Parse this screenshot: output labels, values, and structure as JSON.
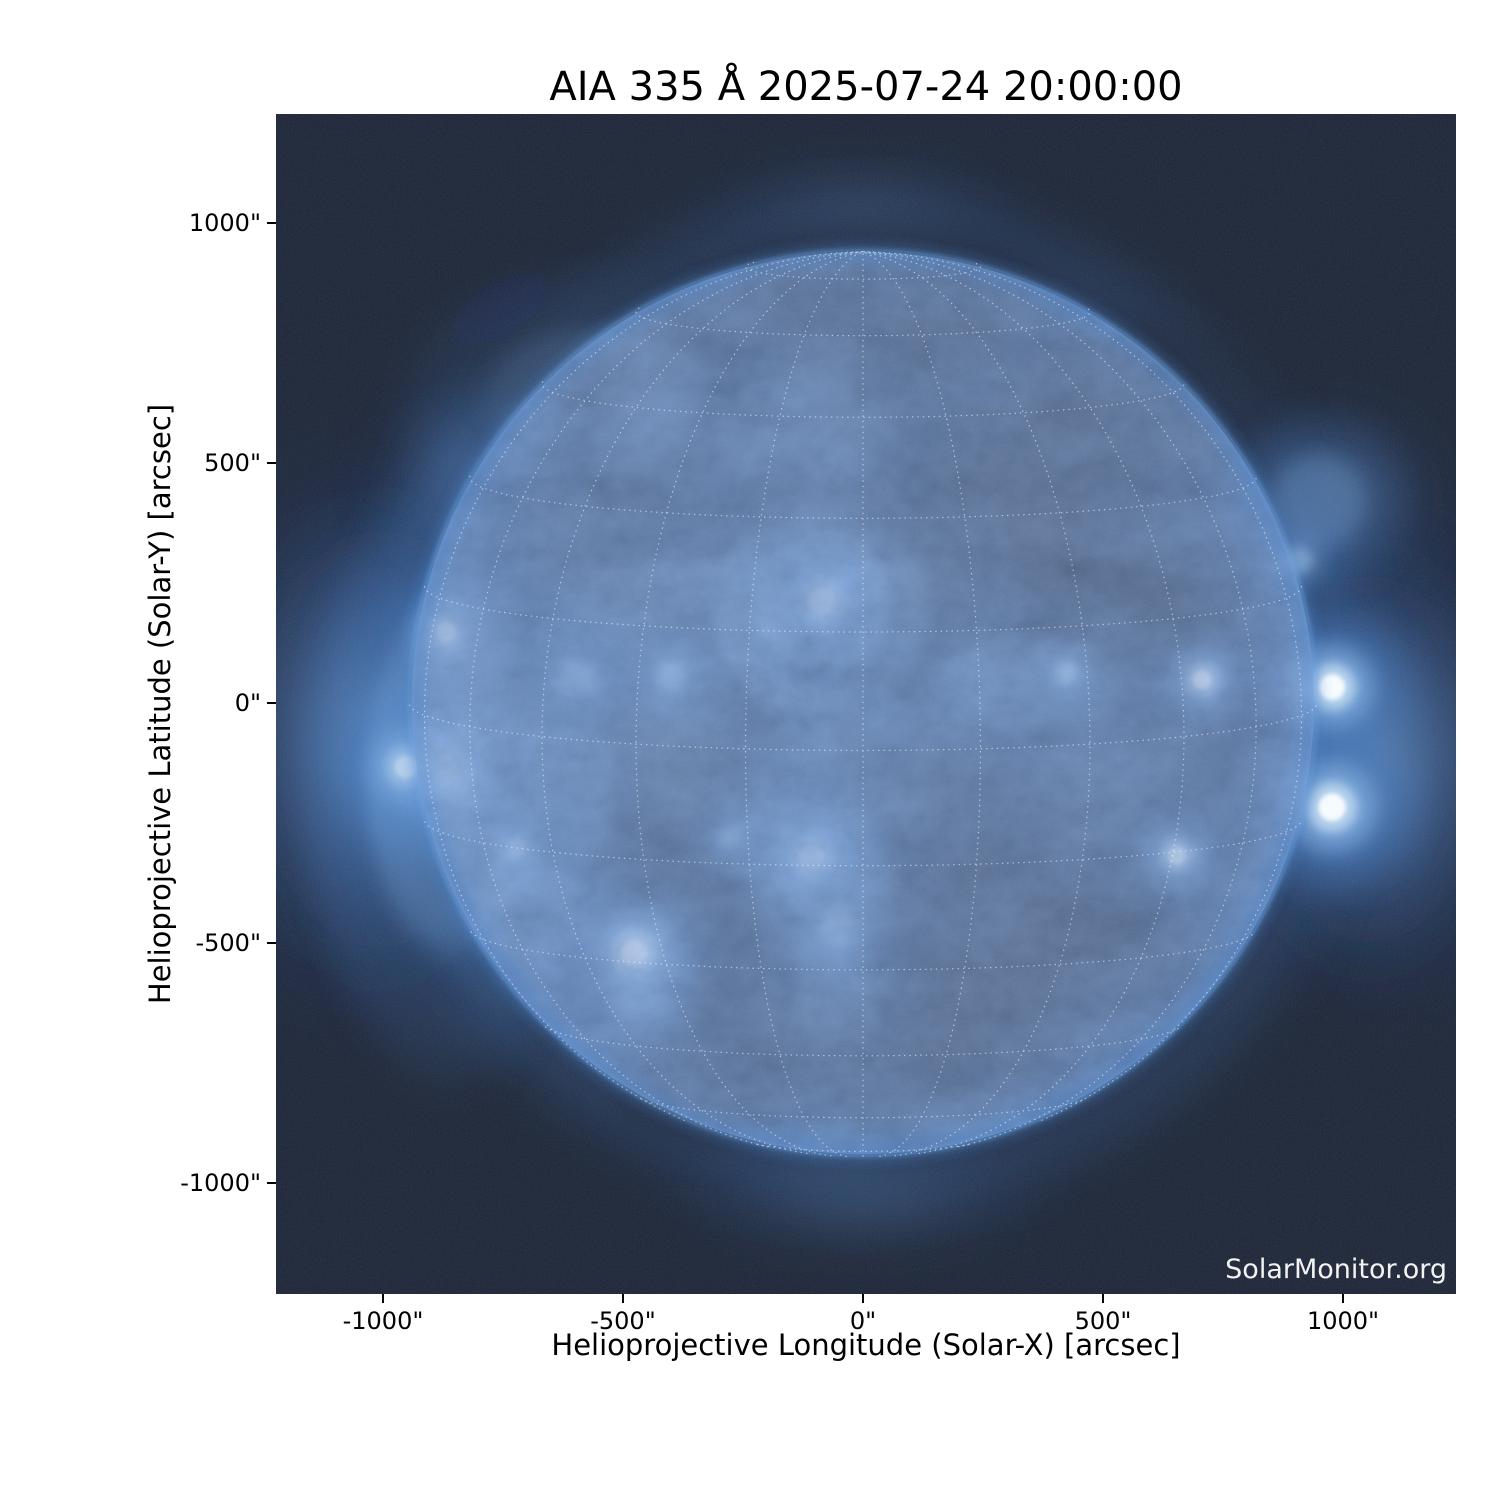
{
  "title": "AIA 335 Å 2025-07-24 20:00:00",
  "watermark": "SolarMonitor.org",
  "axes": {
    "x": {
      "label": "Helioprojective Longitude (Solar-X) [arcsec]",
      "ticks": [
        {
          "v": -1000,
          "label": "-1000\""
        },
        {
          "v": -500,
          "label": "-500\""
        },
        {
          "v": 0,
          "label": "0\""
        },
        {
          "v": 500,
          "label": "500\""
        },
        {
          "v": 1000,
          "label": "1000\""
        }
      ]
    },
    "y": {
      "label": "Helioprojective Latitude (Solar-Y) [arcsec]",
      "ticks": [
        {
          "v": 1000,
          "label": "1000\""
        },
        {
          "v": 500,
          "label": "500\""
        },
        {
          "v": 0,
          "label": "0\""
        },
        {
          "v": -500,
          "label": "-500\""
        },
        {
          "v": -1000,
          "label": "-1000\""
        }
      ]
    }
  },
  "chart_data": {
    "type": "heatmap",
    "title": "AIA 335 Å 2025-07-24 20:00:00",
    "instrument": "AIA",
    "wavelength": "335 Å",
    "observed": "2025-07-24 20:00:00",
    "credit": "SolarMonitor.org",
    "xlabel": "Helioprojective Longitude (Solar-X) [arcsec]",
    "ylabel": "Helioprojective Latitude (Solar-Y) [arcsec]",
    "xlim": [
      -1222,
      1236
    ],
    "ylim": [
      -1231,
      1227
    ],
    "x_ticks_arcsec": [
      -1000,
      -500,
      0,
      500,
      1000
    ],
    "y_ticks_arcsec": [
      -1000,
      -500,
      0,
      500,
      1000
    ],
    "grid": {
      "spacing_deg": 15,
      "style": "dotted",
      "color": "#ffffff"
    },
    "solar_disk": {
      "center_arcsec": [
        0,
        0
      ],
      "radius_arcsec": 946,
      "b0_deg": 6
    },
    "palette": {
      "background": "#000000",
      "corona_glow": "#3b74c0",
      "limb_rim": "#356fc0",
      "bright_core": "#f5fafe",
      "disk_dark": "#04070f"
    },
    "bright_features": [
      {
        "name": "AR-disk-center-north",
        "x": -85,
        "y": 212,
        "r": 82,
        "i": 1.0
      },
      {
        "name": "AR-center-halo",
        "x": -85,
        "y": 190,
        "r": 185,
        "i": 0.33,
        "sx": 1.15
      },
      {
        "name": "plage-NE-of-center",
        "x": -383,
        "y": 183,
        "r": 150,
        "i": 0.4,
        "sx": 1.5,
        "sy": 0.75
      },
      {
        "name": "plage-knot-E",
        "x": -598,
        "y": 54,
        "r": 55,
        "i": 0.65
      },
      {
        "name": "plage-knot-C",
        "x": -400,
        "y": 58,
        "r": 45,
        "i": 0.6
      },
      {
        "name": "AR-east-limb-1",
        "x": -877,
        "y": -140,
        "r": 95,
        "i": 1.0
      },
      {
        "name": "AR-east-limb-2",
        "x": -952,
        "y": -133,
        "r": 70,
        "i": 0.95
      },
      {
        "name": "AR-east-limb-3",
        "x": -869,
        "y": 148,
        "r": 60,
        "i": 0.9
      },
      {
        "name": "AR-east-limb-4",
        "x": -721,
        "y": -302,
        "r": 52,
        "i": 0.85
      },
      {
        "name": "east-limb-halo",
        "x": -860,
        "y": -160,
        "r": 200,
        "i": 0.4,
        "sx": 0.8,
        "sy": 1.6
      },
      {
        "name": "AR-southwest",
        "x": -477,
        "y": -521,
        "r": 80,
        "i": 1.0
      },
      {
        "name": "AR-southwest-loops",
        "x": -467,
        "y": -619,
        "r": 60,
        "i": 0.5
      },
      {
        "name": "knot-south",
        "x": -275,
        "y": -279,
        "r": 36,
        "i": 0.7
      },
      {
        "name": "AR-south-center",
        "x": -106,
        "y": -321,
        "r": 75,
        "i": 1.0
      },
      {
        "name": "AR-south-center-ext",
        "x": -54,
        "y": -462,
        "r": 55,
        "i": 0.65,
        "sy": 1.3
      },
      {
        "name": "AR-south-halo",
        "x": -95,
        "y": -360,
        "r": 140,
        "i": 0.36,
        "sy": 1.2
      },
      {
        "name": "plage-west-fan",
        "x": 335,
        "y": 42,
        "r": 115,
        "i": 0.45,
        "sx": 1.5,
        "sy": 0.8
      },
      {
        "name": "knot-west",
        "x": 425,
        "y": 65,
        "r": 34,
        "i": 0.75
      },
      {
        "name": "AR-west-1",
        "x": 706,
        "y": 48,
        "r": 55,
        "i": 0.85
      },
      {
        "name": "AR-west-2",
        "x": 654,
        "y": -317,
        "r": 55,
        "i": 0.8
      },
      {
        "name": "AR-west-limb-N",
        "x": 977,
        "y": 33,
        "r": 80,
        "i": 1.0
      },
      {
        "name": "AR-west-limb-S",
        "x": 977,
        "y": -217,
        "r": 85,
        "i": 1.0
      },
      {
        "name": "west-limb-knot-N",
        "x": 908,
        "y": 298,
        "r": 45,
        "i": 0.55
      },
      {
        "name": "west-limb-halo-N",
        "x": 950,
        "y": 420,
        "r": 90,
        "i": 0.4
      },
      {
        "name": "wisps-north-1",
        "x": -550,
        "y": 630,
        "r": 140,
        "i": 0.26,
        "sx": 1.5
      },
      {
        "name": "wisps-north-2",
        "x": -130,
        "y": 560,
        "r": 115,
        "i": 0.28,
        "sx": 1.4
      },
      {
        "name": "wisps-east-inner",
        "x": -612,
        "y": -120,
        "r": 115,
        "i": 0.45,
        "sx": 0.75,
        "sy": 1.7
      },
      {
        "name": "wisps-central",
        "x": -300,
        "y": -100,
        "r": 145,
        "i": 0.28,
        "sx": 1.5
      },
      {
        "name": "wisps-south-central",
        "x": 60,
        "y": -120,
        "r": 125,
        "i": 0.24,
        "sx": 1.4
      },
      {
        "name": "wisps-west-lower",
        "x": 500,
        "y": -150,
        "r": 105,
        "i": 0.26,
        "sx": 1.3
      },
      {
        "name": "wisps-southeast",
        "x": -700,
        "y": -430,
        "r": 95,
        "i": 0.45
      },
      {
        "name": "wisps-south-loops",
        "x": -50,
        "y": -619,
        "r": 85,
        "i": 0.28
      }
    ]
  }
}
